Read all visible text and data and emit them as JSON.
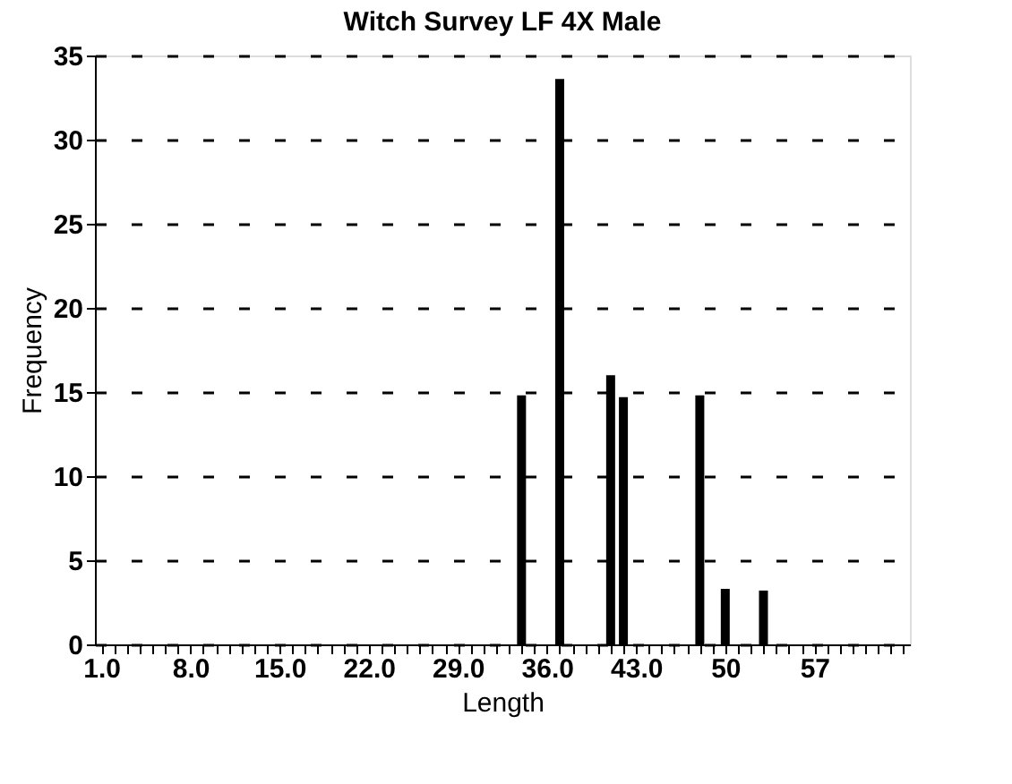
{
  "chart_data": {
    "type": "bar",
    "title": "Witch Survey LF 4X Male",
    "xlabel": "Length",
    "ylabel": "Frequency",
    "x": [
      34,
      37,
      41,
      42,
      48,
      50,
      53
    ],
    "values": [
      14.8,
      33.6,
      16.0,
      14.7,
      14.8,
      3.3,
      3.2
    ],
    "color": "#000000",
    "xlim": [
      0.5,
      64.5
    ],
    "xticks": [
      {
        "value": 1,
        "label": "1.0"
      },
      {
        "value": 2,
        "label": null
      },
      {
        "value": 3,
        "label": null
      },
      {
        "value": 4,
        "label": null
      },
      {
        "value": 5,
        "label": null
      },
      {
        "value": 6,
        "label": null
      },
      {
        "value": 7,
        "label": null
      },
      {
        "value": 8,
        "label": "8.0"
      },
      {
        "value": 9,
        "label": null
      },
      {
        "value": 10,
        "label": null
      },
      {
        "value": 11,
        "label": null
      },
      {
        "value": 12,
        "label": null
      },
      {
        "value": 13,
        "label": null
      },
      {
        "value": 14,
        "label": null
      },
      {
        "value": 15,
        "label": "15.0"
      },
      {
        "value": 16,
        "label": null
      },
      {
        "value": 17,
        "label": null
      },
      {
        "value": 18,
        "label": null
      },
      {
        "value": 19,
        "label": null
      },
      {
        "value": 20,
        "label": null
      },
      {
        "value": 21,
        "label": null
      },
      {
        "value": 22,
        "label": "22.0"
      },
      {
        "value": 23,
        "label": null
      },
      {
        "value": 24,
        "label": null
      },
      {
        "value": 25,
        "label": null
      },
      {
        "value": 26,
        "label": null
      },
      {
        "value": 27,
        "label": null
      },
      {
        "value": 28,
        "label": null
      },
      {
        "value": 29,
        "label": "29.0"
      },
      {
        "value": 30,
        "label": null
      },
      {
        "value": 31,
        "label": null
      },
      {
        "value": 32,
        "label": null
      },
      {
        "value": 33,
        "label": null
      },
      {
        "value": 34,
        "label": null
      },
      {
        "value": 35,
        "label": null
      },
      {
        "value": 36,
        "label": "36.0"
      },
      {
        "value": 37,
        "label": null
      },
      {
        "value": 38,
        "label": null
      },
      {
        "value": 39,
        "label": null
      },
      {
        "value": 40,
        "label": null
      },
      {
        "value": 41,
        "label": null
      },
      {
        "value": 42,
        "label": null
      },
      {
        "value": 43,
        "label": "43.0"
      },
      {
        "value": 44,
        "label": null
      },
      {
        "value": 45,
        "label": null
      },
      {
        "value": 46,
        "label": null
      },
      {
        "value": 47,
        "label": null
      },
      {
        "value": 48,
        "label": null
      },
      {
        "value": 49,
        "label": null
      },
      {
        "value": 50,
        "label": "50"
      },
      {
        "value": 51,
        "label": null
      },
      {
        "value": 52,
        "label": null
      },
      {
        "value": 53,
        "label": null
      },
      {
        "value": 54,
        "label": null
      },
      {
        "value": 55,
        "label": null
      },
      {
        "value": 56,
        "label": null
      },
      {
        "value": 57,
        "label": "57"
      },
      {
        "value": 58,
        "label": null
      },
      {
        "value": 59,
        "label": null
      },
      {
        "value": 60,
        "label": null
      },
      {
        "value": 61,
        "label": null
      },
      {
        "value": 62,
        "label": null
      },
      {
        "value": 63,
        "label": null
      },
      {
        "value": 64,
        "label": null
      }
    ],
    "ylim": [
      0,
      35
    ],
    "yticks": [
      0,
      5,
      10,
      15,
      20,
      25,
      30,
      35
    ],
    "grid": "y"
  }
}
